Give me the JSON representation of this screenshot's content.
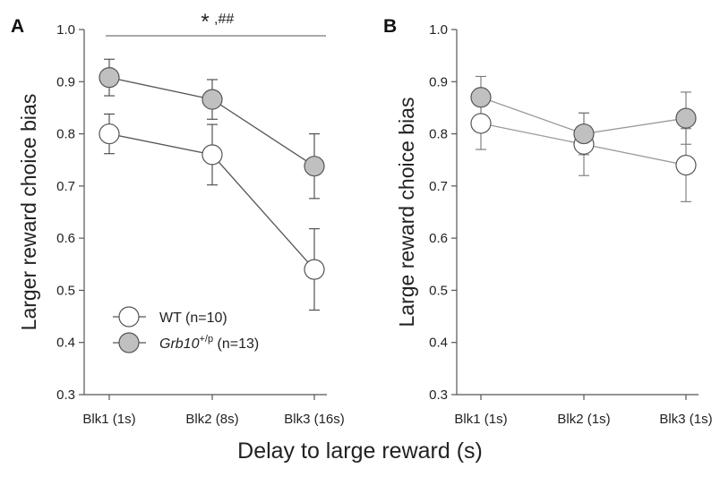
{
  "figure": {
    "common_xlabel": "Delay to large reward (s)"
  },
  "legend": {
    "wt_label": "WT (n=10)",
    "grb_gene": "Grb10",
    "grb_superscript": "+/p",
    "grb_suffix": " (n=13)"
  },
  "chart_data": [
    {
      "panel_label": "A",
      "type": "line",
      "ylabel": "Larger reward choice bias",
      "xlabel": "",
      "categories": [
        "Blk1 (1s)",
        "Blk2 (8s)",
        "Blk3 (16s)"
      ],
      "ylim": [
        0.3,
        1.0
      ],
      "yticks": [
        "0.3",
        "0.4",
        "0.5",
        "0.6",
        "0.7",
        "0.8",
        "0.9",
        "1.0"
      ],
      "significance": {
        "star": "*",
        "hash": ",##"
      },
      "legend_position": "lower-left",
      "series": [
        {
          "name": "WT (n=10)",
          "values": [
            0.8,
            0.76,
            0.54
          ],
          "errors": [
            0.038,
            0.058,
            0.078
          ],
          "fill": "#ffffff",
          "line": "#555555"
        },
        {
          "name": "Grb10+/p (n=13)",
          "values": [
            0.908,
            0.866,
            0.738
          ],
          "errors": [
            0.035,
            0.038,
            0.062
          ],
          "fill": "#c0c0c0",
          "line": "#555555"
        }
      ]
    },
    {
      "panel_label": "B",
      "type": "line",
      "ylabel": "Large reward choice bias",
      "xlabel": "",
      "categories": [
        "Blk1 (1s)",
        "Blk2 (1s)",
        "Blk3 (1s)"
      ],
      "ylim": [
        0.3,
        1.0
      ],
      "yticks": [
        "0.3",
        "0.4",
        "0.5",
        "0.6",
        "0.7",
        "0.8",
        "0.9",
        "1.0"
      ],
      "series": [
        {
          "name": "WT",
          "values": [
            0.82,
            0.78,
            0.74
          ],
          "errors": [
            0.05,
            0.06,
            0.07
          ],
          "fill": "#ffffff",
          "line": "#999999"
        },
        {
          "name": "Grb10+/p",
          "values": [
            0.87,
            0.8,
            0.83
          ],
          "errors": [
            0.04,
            0.04,
            0.05
          ],
          "fill": "#c0c0c0",
          "line": "#999999"
        }
      ]
    }
  ]
}
